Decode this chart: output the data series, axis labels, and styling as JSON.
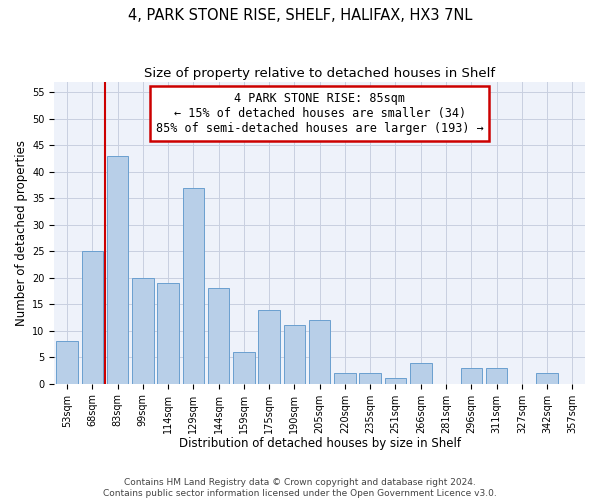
{
  "title": "4, PARK STONE RISE, SHELF, HALIFAX, HX3 7NL",
  "subtitle": "Size of property relative to detached houses in Shelf",
  "xlabel": "Distribution of detached houses by size in Shelf",
  "ylabel": "Number of detached properties",
  "footer_line1": "Contains HM Land Registry data © Crown copyright and database right 2024.",
  "footer_line2": "Contains public sector information licensed under the Open Government Licence v3.0.",
  "categories": [
    "53sqm",
    "68sqm",
    "83sqm",
    "99sqm",
    "114sqm",
    "129sqm",
    "144sqm",
    "159sqm",
    "175sqm",
    "190sqm",
    "205sqm",
    "220sqm",
    "235sqm",
    "251sqm",
    "266sqm",
    "281sqm",
    "296sqm",
    "311sqm",
    "327sqm",
    "342sqm",
    "357sqm"
  ],
  "values": [
    8,
    25,
    43,
    20,
    19,
    37,
    18,
    6,
    14,
    11,
    12,
    2,
    2,
    1,
    4,
    0,
    3,
    3,
    0,
    2,
    0
  ],
  "bar_color": "#b8cfe8",
  "bar_edge_color": "#6a9fd0",
  "vline_x_index": 2,
  "annotation_text_line1": "4 PARK STONE RISE: 85sqm",
  "annotation_text_line2": "← 15% of detached houses are smaller (34)",
  "annotation_text_line3": "85% of semi-detached houses are larger (193) →",
  "annotation_box_color": "#ffffff",
  "annotation_box_edge_color": "#cc0000",
  "vline_color": "#cc0000",
  "ylim": [
    0,
    57
  ],
  "yticks": [
    0,
    5,
    10,
    15,
    20,
    25,
    30,
    35,
    40,
    45,
    50,
    55
  ],
  "bg_color": "#eef2fa",
  "grid_color": "#c8cfe0",
  "title_fontsize": 10.5,
  "subtitle_fontsize": 9.5,
  "xlabel_fontsize": 8.5,
  "ylabel_fontsize": 8.5,
  "tick_fontsize": 7,
  "annotation_fontsize": 8.5,
  "footer_fontsize": 6.5
}
